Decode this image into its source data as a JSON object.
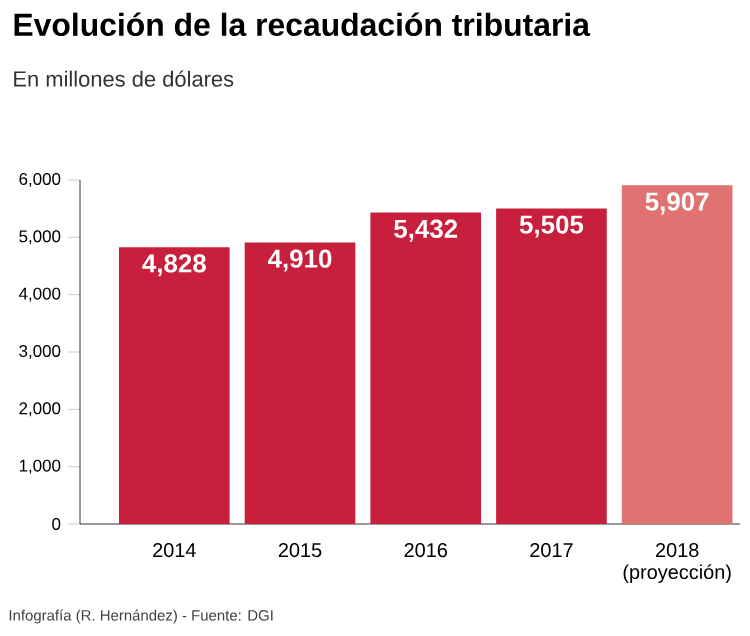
{
  "chart_data": {
    "type": "bar",
    "title": "Evolución de la recaudación tributaria",
    "subtitle": "En millones de dólares",
    "categories": [
      "2014",
      "2015",
      "2016",
      "2017",
      "2018 (proyección)"
    ],
    "values": [
      4828,
      4910,
      5432,
      5505,
      5907
    ],
    "colors": [
      "#c8203c",
      "#c8203c",
      "#c8203c",
      "#c8203c",
      "#e07272"
    ],
    "ylim": [
      0,
      6000
    ],
    "yticks": [
      0,
      {
        "value": 1000,
        "label": "1,000"
      },
      {
        "value": 2000,
        "label": "2,000"
      },
      {
        "value": 3000,
        "label": "3,000"
      },
      {
        "value": 4000,
        "label": "4,000"
      },
      {
        "value": 5000,
        "label": "5,000"
      },
      {
        "value": 6000,
        "label": "6,000"
      }
    ],
    "value_labels": [
      "4,828",
      "4,910",
      "5,432",
      "5,505",
      "5,907"
    ],
    "annotations": [
      "Infografía (R. Hernández) - Fuente: DGI"
    ]
  }
}
